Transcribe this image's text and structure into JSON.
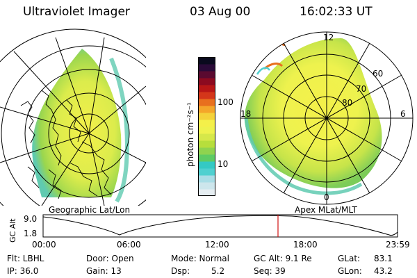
{
  "header": {
    "instrument": "Ultraviolet Imager",
    "date": "03 Aug 00",
    "time": "16:02:33 UT"
  },
  "left_panel": {
    "caption": "Geographic Lat/Lon"
  },
  "right_panel": {
    "caption": "Apex MLat/MLT",
    "mlt_labels": {
      "top": "12",
      "bottom": "0",
      "left": "18",
      "right": "6"
    },
    "lat_labels": [
      "60",
      "70",
      "80"
    ]
  },
  "colorbar": {
    "unit_label": "photon cm⁻²s⁻¹",
    "tick_100": "100",
    "tick_10": "10",
    "colors": [
      "#e6eef2",
      "#cde6ec",
      "#a9dde6",
      "#4fd0d0",
      "#34c9c4",
      "#5ecb64",
      "#8fd34f",
      "#b7de3c",
      "#d6e84a",
      "#eef24e",
      "#f4f04a",
      "#f4d23a",
      "#f4a62a",
      "#e8701e",
      "#d4361a",
      "#b81616",
      "#8c0a20",
      "#5a0a30",
      "#2a0a38",
      "#0a0a1e"
    ]
  },
  "altitude_plot": {
    "ylabel": "GC Alt",
    "yticks": [
      "9.0",
      "1.8"
    ],
    "xticks": [
      "00:00",
      "06:00",
      "12:00",
      "18:00",
      "23:59"
    ],
    "marker_color": "#d01010"
  },
  "status": {
    "row1": [
      {
        "key": "flt",
        "text": "Flt: LBHL"
      },
      {
        "key": "door",
        "text": "Door: Open"
      },
      {
        "key": "mode",
        "text": "Mode: Normal"
      },
      {
        "key": "gcalt",
        "text": "GC Alt: 9.1 Re"
      },
      {
        "key": "glat",
        "text": "GLat:"
      },
      {
        "key": "glat_val",
        "text": "83.1"
      }
    ],
    "row2": [
      {
        "key": "ip",
        "text": "IP: 36.0"
      },
      {
        "key": "gain",
        "text": "Gain: 13"
      },
      {
        "key": "dsp",
        "text": "Dsp:"
      },
      {
        "key": "dsp_val",
        "text": "5.2"
      },
      {
        "key": "seq",
        "text": "Seq: 39"
      },
      {
        "key": "glon",
        "text": "GLon:"
      },
      {
        "key": "glon_val",
        "text": "43.2"
      }
    ]
  }
}
